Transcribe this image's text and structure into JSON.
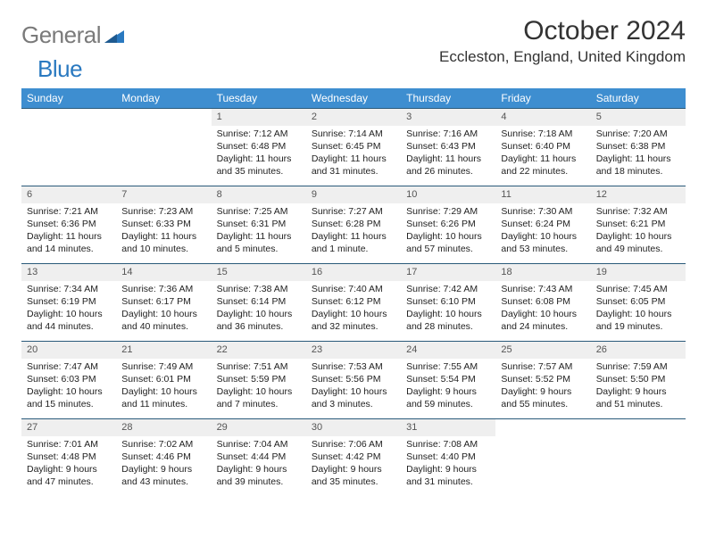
{
  "logo": {
    "text_gray": "General",
    "text_blue": "Blue"
  },
  "colors": {
    "header_bg": "#3e8ed0",
    "header_text": "#ffffff",
    "week_border": "#2a5a7a",
    "daynum_bg": "#efefef",
    "daynum_text": "#555555",
    "body_text": "#222222",
    "title_text": "#333333",
    "logo_gray": "#7a7a7a",
    "logo_blue": "#2a79c0",
    "page_bg": "#ffffff"
  },
  "title": "October 2024",
  "location": "Eccleston, England, United Kingdom",
  "weekdays": [
    "Sunday",
    "Monday",
    "Tuesday",
    "Wednesday",
    "Thursday",
    "Friday",
    "Saturday"
  ],
  "weeks": [
    [
      {
        "n": "",
        "sr": "",
        "ss": "",
        "dl": ""
      },
      {
        "n": "",
        "sr": "",
        "ss": "",
        "dl": ""
      },
      {
        "n": "1",
        "sr": "Sunrise: 7:12 AM",
        "ss": "Sunset: 6:48 PM",
        "dl": "Daylight: 11 hours and 35 minutes."
      },
      {
        "n": "2",
        "sr": "Sunrise: 7:14 AM",
        "ss": "Sunset: 6:45 PM",
        "dl": "Daylight: 11 hours and 31 minutes."
      },
      {
        "n": "3",
        "sr": "Sunrise: 7:16 AM",
        "ss": "Sunset: 6:43 PM",
        "dl": "Daylight: 11 hours and 26 minutes."
      },
      {
        "n": "4",
        "sr": "Sunrise: 7:18 AM",
        "ss": "Sunset: 6:40 PM",
        "dl": "Daylight: 11 hours and 22 minutes."
      },
      {
        "n": "5",
        "sr": "Sunrise: 7:20 AM",
        "ss": "Sunset: 6:38 PM",
        "dl": "Daylight: 11 hours and 18 minutes."
      }
    ],
    [
      {
        "n": "6",
        "sr": "Sunrise: 7:21 AM",
        "ss": "Sunset: 6:36 PM",
        "dl": "Daylight: 11 hours and 14 minutes."
      },
      {
        "n": "7",
        "sr": "Sunrise: 7:23 AM",
        "ss": "Sunset: 6:33 PM",
        "dl": "Daylight: 11 hours and 10 minutes."
      },
      {
        "n": "8",
        "sr": "Sunrise: 7:25 AM",
        "ss": "Sunset: 6:31 PM",
        "dl": "Daylight: 11 hours and 5 minutes."
      },
      {
        "n": "9",
        "sr": "Sunrise: 7:27 AM",
        "ss": "Sunset: 6:28 PM",
        "dl": "Daylight: 11 hours and 1 minute."
      },
      {
        "n": "10",
        "sr": "Sunrise: 7:29 AM",
        "ss": "Sunset: 6:26 PM",
        "dl": "Daylight: 10 hours and 57 minutes."
      },
      {
        "n": "11",
        "sr": "Sunrise: 7:30 AM",
        "ss": "Sunset: 6:24 PM",
        "dl": "Daylight: 10 hours and 53 minutes."
      },
      {
        "n": "12",
        "sr": "Sunrise: 7:32 AM",
        "ss": "Sunset: 6:21 PM",
        "dl": "Daylight: 10 hours and 49 minutes."
      }
    ],
    [
      {
        "n": "13",
        "sr": "Sunrise: 7:34 AM",
        "ss": "Sunset: 6:19 PM",
        "dl": "Daylight: 10 hours and 44 minutes."
      },
      {
        "n": "14",
        "sr": "Sunrise: 7:36 AM",
        "ss": "Sunset: 6:17 PM",
        "dl": "Daylight: 10 hours and 40 minutes."
      },
      {
        "n": "15",
        "sr": "Sunrise: 7:38 AM",
        "ss": "Sunset: 6:14 PM",
        "dl": "Daylight: 10 hours and 36 minutes."
      },
      {
        "n": "16",
        "sr": "Sunrise: 7:40 AM",
        "ss": "Sunset: 6:12 PM",
        "dl": "Daylight: 10 hours and 32 minutes."
      },
      {
        "n": "17",
        "sr": "Sunrise: 7:42 AM",
        "ss": "Sunset: 6:10 PM",
        "dl": "Daylight: 10 hours and 28 minutes."
      },
      {
        "n": "18",
        "sr": "Sunrise: 7:43 AM",
        "ss": "Sunset: 6:08 PM",
        "dl": "Daylight: 10 hours and 24 minutes."
      },
      {
        "n": "19",
        "sr": "Sunrise: 7:45 AM",
        "ss": "Sunset: 6:05 PM",
        "dl": "Daylight: 10 hours and 19 minutes."
      }
    ],
    [
      {
        "n": "20",
        "sr": "Sunrise: 7:47 AM",
        "ss": "Sunset: 6:03 PM",
        "dl": "Daylight: 10 hours and 15 minutes."
      },
      {
        "n": "21",
        "sr": "Sunrise: 7:49 AM",
        "ss": "Sunset: 6:01 PM",
        "dl": "Daylight: 10 hours and 11 minutes."
      },
      {
        "n": "22",
        "sr": "Sunrise: 7:51 AM",
        "ss": "Sunset: 5:59 PM",
        "dl": "Daylight: 10 hours and 7 minutes."
      },
      {
        "n": "23",
        "sr": "Sunrise: 7:53 AM",
        "ss": "Sunset: 5:56 PM",
        "dl": "Daylight: 10 hours and 3 minutes."
      },
      {
        "n": "24",
        "sr": "Sunrise: 7:55 AM",
        "ss": "Sunset: 5:54 PM",
        "dl": "Daylight: 9 hours and 59 minutes."
      },
      {
        "n": "25",
        "sr": "Sunrise: 7:57 AM",
        "ss": "Sunset: 5:52 PM",
        "dl": "Daylight: 9 hours and 55 minutes."
      },
      {
        "n": "26",
        "sr": "Sunrise: 7:59 AM",
        "ss": "Sunset: 5:50 PM",
        "dl": "Daylight: 9 hours and 51 minutes."
      }
    ],
    [
      {
        "n": "27",
        "sr": "Sunrise: 7:01 AM",
        "ss": "Sunset: 4:48 PM",
        "dl": "Daylight: 9 hours and 47 minutes."
      },
      {
        "n": "28",
        "sr": "Sunrise: 7:02 AM",
        "ss": "Sunset: 4:46 PM",
        "dl": "Daylight: 9 hours and 43 minutes."
      },
      {
        "n": "29",
        "sr": "Sunrise: 7:04 AM",
        "ss": "Sunset: 4:44 PM",
        "dl": "Daylight: 9 hours and 39 minutes."
      },
      {
        "n": "30",
        "sr": "Sunrise: 7:06 AM",
        "ss": "Sunset: 4:42 PM",
        "dl": "Daylight: 9 hours and 35 minutes."
      },
      {
        "n": "31",
        "sr": "Sunrise: 7:08 AM",
        "ss": "Sunset: 4:40 PM",
        "dl": "Daylight: 9 hours and 31 minutes."
      },
      {
        "n": "",
        "sr": "",
        "ss": "",
        "dl": ""
      },
      {
        "n": "",
        "sr": "",
        "ss": "",
        "dl": ""
      }
    ]
  ]
}
